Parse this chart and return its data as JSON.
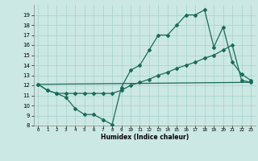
{
  "xlabel": "Humidex (Indice chaleur)",
  "bg_color": "#cce8e4",
  "grid_color": "#aad4ce",
  "line_color": "#1a6b5a",
  "xlim": [
    -0.5,
    23.5
  ],
  "ylim": [
    8,
    20
  ],
  "yticks": [
    8,
    9,
    10,
    11,
    12,
    13,
    14,
    15,
    16,
    17,
    18,
    19
  ],
  "xticks": [
    0,
    1,
    2,
    3,
    4,
    5,
    6,
    7,
    8,
    9,
    10,
    11,
    12,
    13,
    14,
    15,
    16,
    17,
    18,
    19,
    20,
    21,
    22,
    23
  ],
  "series1_x": [
    0,
    1,
    2,
    3,
    4,
    5,
    6,
    7,
    8,
    9,
    10,
    11,
    12,
    13,
    14,
    15,
    16,
    17,
    18,
    19,
    20,
    21,
    22,
    23
  ],
  "series1_y": [
    12.1,
    11.5,
    11.2,
    10.8,
    9.7,
    9.1,
    9.1,
    8.6,
    8.1,
    11.8,
    13.5,
    14.0,
    15.5,
    17.0,
    17.0,
    18.0,
    19.0,
    19.0,
    19.5,
    15.8,
    17.8,
    14.3,
    13.1,
    12.5
  ],
  "series2_x": [
    0,
    1,
    2,
    3,
    4,
    5,
    6,
    7,
    8,
    9,
    10,
    11,
    12,
    13,
    14,
    15,
    16,
    17,
    18,
    19,
    20,
    21,
    22,
    23
  ],
  "series2_y": [
    12.1,
    11.5,
    11.2,
    11.2,
    11.2,
    11.2,
    11.2,
    11.2,
    11.2,
    11.5,
    12.0,
    12.3,
    12.6,
    13.0,
    13.3,
    13.7,
    14.0,
    14.3,
    14.7,
    15.0,
    15.5,
    16.0,
    12.5,
    12.3
  ],
  "series3_x": [
    0,
    23
  ],
  "series3_y": [
    12.1,
    12.3
  ]
}
